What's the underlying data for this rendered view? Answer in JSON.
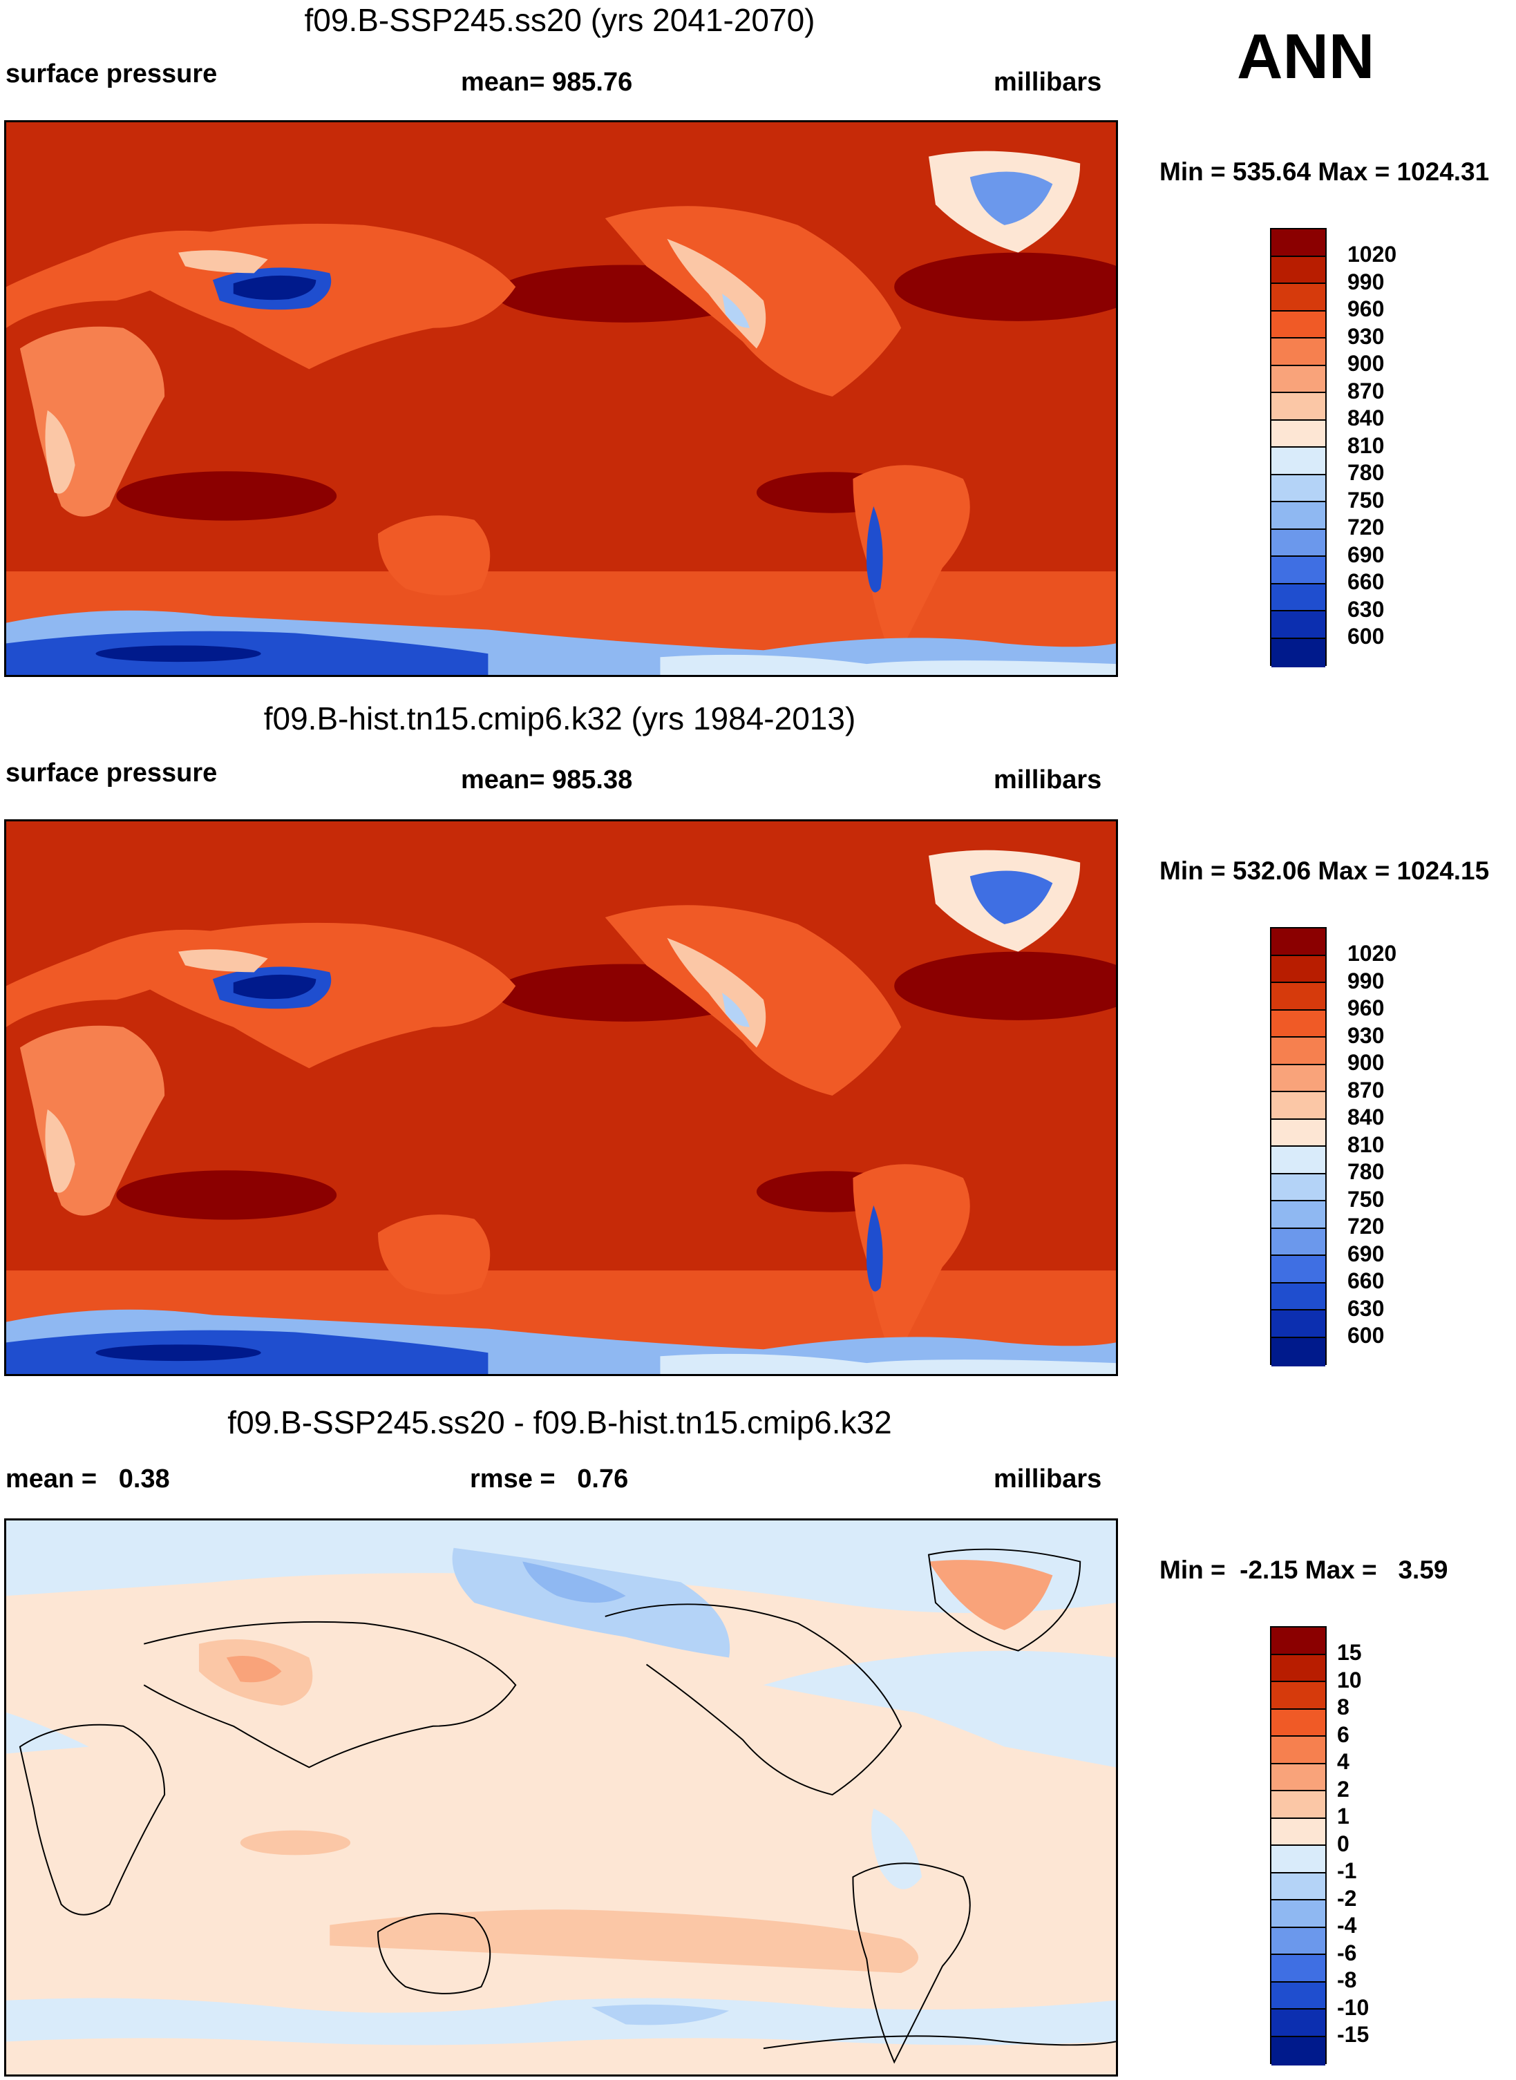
{
  "season": "ANN",
  "panels": [
    {
      "title": "f09.B-SSP245.ss20 (yrs 2041-2070)",
      "left_label": "surface pressure",
      "center_label": "mean= 985.76",
      "right_label": "millibars",
      "minmax": "Min = 535.64 Max = 1024.31",
      "colorbar": {
        "labels": [
          "1020",
          "990",
          "960",
          "930",
          "900",
          "870",
          "840",
          "810",
          "780",
          "750",
          "720",
          "690",
          "660",
          "630",
          "600"
        ],
        "colors": [
          "#8b0000",
          "#b81d00",
          "#d63a0c",
          "#f05a26",
          "#f6804f",
          "#f9a37a",
          "#fbc7a6",
          "#fde6d4",
          "#d9ebfa",
          "#b4d3f7",
          "#8fb8f2",
          "#6b98ec",
          "#3f6fe3",
          "#1f4ecf",
          "#0c2fb0",
          "#001a8c"
        ]
      }
    },
    {
      "title": "f09.B-hist.tn15.cmip6.k32 (yrs 1984-2013)",
      "left_label": "surface pressure",
      "center_label": "mean= 985.38",
      "right_label": "millibars",
      "minmax": "Min = 532.06 Max = 1024.15",
      "colorbar": {
        "labels": [
          "1020",
          "990",
          "960",
          "930",
          "900",
          "870",
          "840",
          "810",
          "780",
          "750",
          "720",
          "690",
          "660",
          "630",
          "600"
        ],
        "colors": [
          "#8b0000",
          "#b81d00",
          "#d63a0c",
          "#f05a26",
          "#f6804f",
          "#f9a37a",
          "#fbc7a6",
          "#fde6d4",
          "#d9ebfa",
          "#b4d3f7",
          "#8fb8f2",
          "#6b98ec",
          "#3f6fe3",
          "#1f4ecf",
          "#0c2fb0",
          "#001a8c"
        ]
      }
    },
    {
      "title": "f09.B-SSP245.ss20 - f09.B-hist.tn15.cmip6.k32",
      "left_label": "mean =   0.38",
      "center_label": "rmse =   0.76",
      "right_label": "millibars",
      "minmax": "Min =  -2.15 Max =   3.59",
      "colorbar": {
        "labels": [
          "15",
          "10",
          "8",
          "6",
          "4",
          "2",
          "1",
          "0",
          "-1",
          "-2",
          "-4",
          "-6",
          "-8",
          "-10",
          "-15"
        ],
        "colors": [
          "#8b0000",
          "#b81d00",
          "#d63a0c",
          "#f05a26",
          "#f6804f",
          "#f9a37a",
          "#fbc7a6",
          "#fde6d4",
          "#d9ebfa",
          "#b4d3f7",
          "#8fb8f2",
          "#6b98ec",
          "#3f6fe3",
          "#1f4ecf",
          "#0c2fb0",
          "#001a8c"
        ]
      }
    }
  ]
}
